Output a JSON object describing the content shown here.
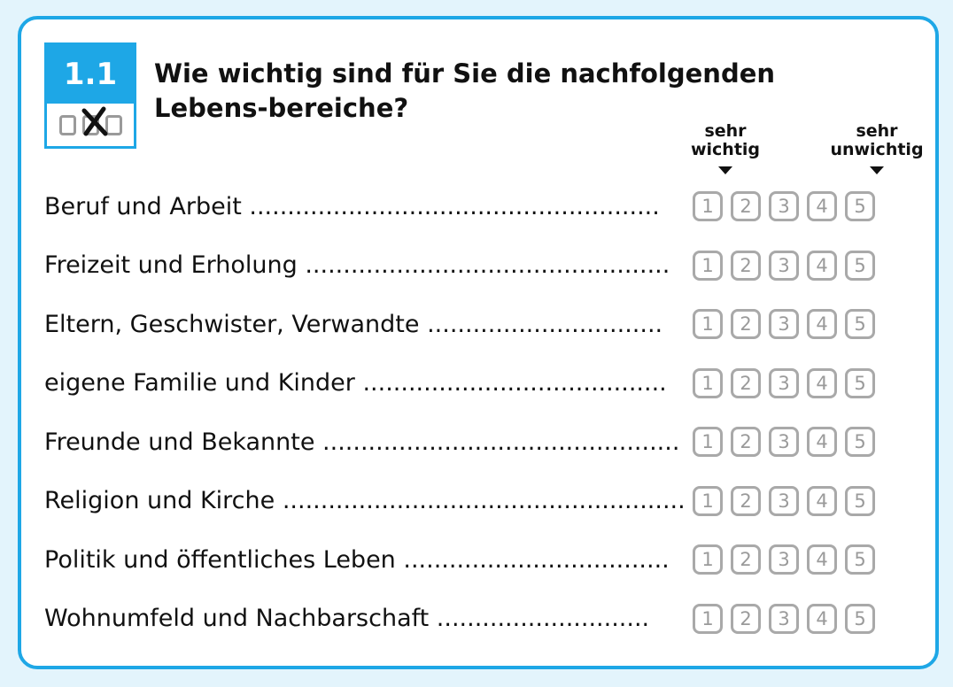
{
  "badge": {
    "number": "1.1"
  },
  "question": "Wie wichtig sind für Sie die nachfolgenden Lebens-bereiche?",
  "scale": {
    "left_label": "sehr wichtig",
    "right_label": "sehr unwichtig"
  },
  "rating_options": [
    "1",
    "2",
    "3",
    "4",
    "5"
  ],
  "items": [
    {
      "label": "Beruf und Arbeit ......................................................"
    },
    {
      "label": "Freizeit und Erholung ................................................"
    },
    {
      "label": "Eltern, Geschwister, Verwandte ..............................."
    },
    {
      "label": "eigene Familie und Kinder ........................................"
    },
    {
      "label": "Freunde und Bekannte ..............................................."
    },
    {
      "label": "Religion und Kirche ....................................................."
    },
    {
      "label": "Politik und öffentliches Leben ..................................."
    },
    {
      "label": "Wohnumfeld und Nachbarschaft ............................"
    }
  ],
  "colors": {
    "accent": "#1ea7e6",
    "background": "#e3f4fc",
    "box_gray": "#a9a9a9"
  },
  "icons": {
    "badge_icon": "checkbox-cross-icon",
    "scale_arrows": "arrow-down-icon"
  }
}
